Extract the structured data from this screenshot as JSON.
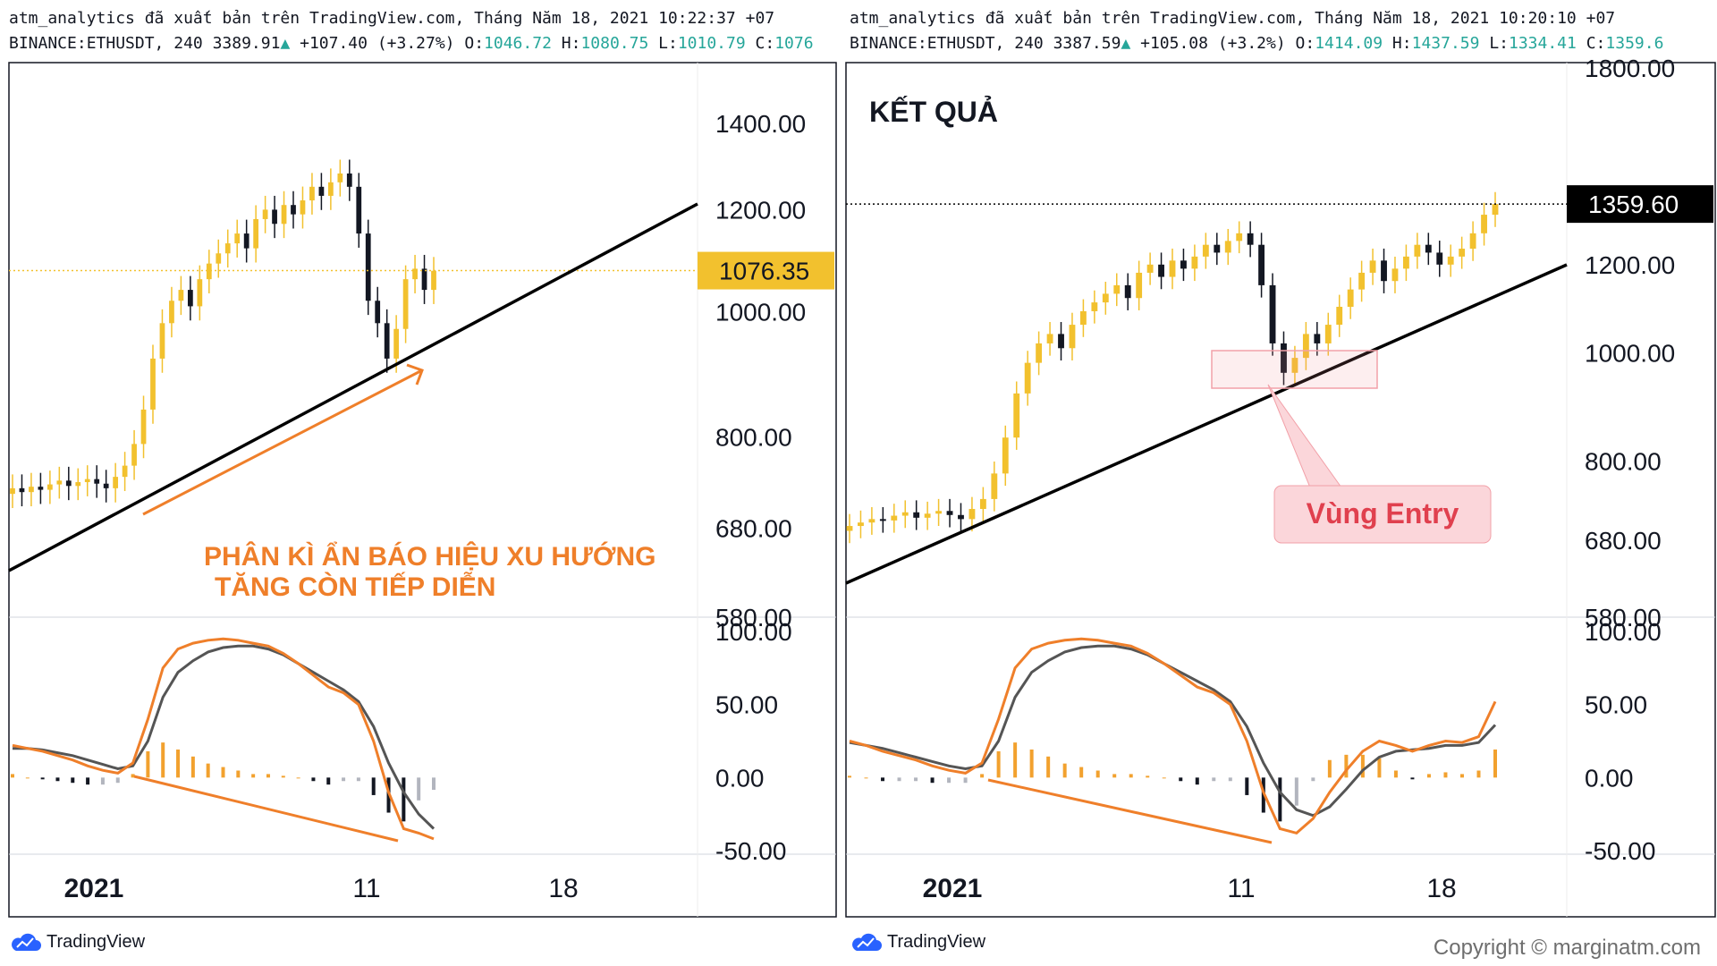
{
  "brand": {
    "logo_text": "TradingView",
    "copyright": "Copyright © marginatm.com",
    "candle_up": "#f2c12e",
    "candle_down": "#131722",
    "accent_orange": "#ef7f2a",
    "trend": "#000000",
    "macd": "#ef7f2a",
    "signal": "#555555"
  },
  "panels": [
    {
      "header_line1": "atm_analytics đã xuất bản trên TradingView.com, Tháng Năm 18, 2021 10:22:37 +07",
      "header_line2": {
        "symbol": "BINANCE:ETHUSDT, 240 3389.91",
        "arrow": "▲",
        "change": "+107.40 (+3.27%)",
        "o_label": "O:",
        "o": "1046.72",
        "h_label": "H:",
        "h": "1080.75",
        "l_label": "L:",
        "l": "1010.79",
        "c_label": "C:",
        "c": "1076"
      },
      "price_tag": "1076.35",
      "annotation_line1": "PHÂN KÌ ẨN BÁO HIỆU XU HƯỚNG",
      "annotation_line2": "TĂNG CÒN TIẾP DIỄN",
      "title": ""
    },
    {
      "header_line1": "atm_analytics đã xuất bản trên TradingView.com, Tháng Năm 18, 2021 10:20:10 +07",
      "header_line2": {
        "symbol": "BINANCE:ETHUSDT, 240 3387.59",
        "arrow": "▲",
        "change": "+105.08 (+3.2%)",
        "o_label": "O:",
        "o": "1414.09",
        "h_label": "H:",
        "h": "1437.59",
        "l_label": "L:",
        "l": "1334.41",
        "c_label": "C:",
        "c": "1359.6"
      },
      "price_tag": "1359.60",
      "title": "KẾT QUẢ",
      "entry_label": "Vùng Entry"
    }
  ],
  "chart_data": [
    {
      "type": "candlestick",
      "panel": "left",
      "y_ticks": [
        "1400.00",
        "1200.00",
        "1000.00",
        "800.00",
        "680.00",
        "580.00"
      ],
      "y_tick_values": [
        1400,
        1200,
        1000,
        800,
        680,
        580
      ],
      "y_scale": "log",
      "ylim": [
        580,
        1560
      ],
      "x_ticks": [
        "2021",
        "11",
        "18"
      ],
      "last_price": 1076.35,
      "close_path": [
        730,
        725,
        732,
        728,
        735,
        740,
        733,
        738,
        742,
        736,
        730,
        745,
        760,
        790,
        840,
        920,
        980,
        1020,
        1040,
        1010,
        1060,
        1090,
        1110,
        1130,
        1150,
        1120,
        1180,
        1200,
        1170,
        1210,
        1190,
        1220,
        1250,
        1230,
        1260,
        1280,
        1250,
        1150,
        1020,
        980,
        920,
        970,
        1060,
        1080,
        1040,
        1076
      ],
      "macd_indicator": {
        "y_ticks": [
          "100.00",
          "50.00",
          "0.00",
          "-50.00"
        ],
        "y_tick_values": [
          100,
          50,
          0,
          -50
        ],
        "macd": [
          22,
          20,
          18,
          15,
          12,
          8,
          5,
          3,
          10,
          40,
          75,
          88,
          92,
          94,
          95,
          94,
          92,
          90,
          85,
          78,
          70,
          62,
          58,
          50,
          25,
          -10,
          -35,
          -38,
          -42
        ],
        "signal": [
          20,
          20,
          19,
          17,
          15,
          12,
          9,
          6,
          8,
          25,
          55,
          72,
          80,
          86,
          89,
          90,
          90,
          88,
          84,
          78,
          72,
          66,
          60,
          52,
          35,
          10,
          -10,
          -25,
          -35
        ]
      }
    },
    {
      "type": "candlestick",
      "panel": "right",
      "y_ticks": [
        "1800.00",
        "1200.00",
        "1000.00",
        "800.00",
        "680.00",
        "580.00"
      ],
      "y_tick_values": [
        1800,
        1200,
        1000,
        800,
        680,
        580
      ],
      "y_scale": "log",
      "ylim": [
        580,
        1820
      ],
      "x_ticks": [
        "2021",
        "11",
        "18"
      ],
      "last_price": 1359.6,
      "close_path": [
        700,
        705,
        710,
        708,
        715,
        720,
        712,
        718,
        722,
        716,
        710,
        725,
        740,
        780,
        840,
        920,
        980,
        1020,
        1040,
        1010,
        1060,
        1090,
        1110,
        1130,
        1150,
        1120,
        1180,
        1200,
        1170,
        1210,
        1190,
        1220,
        1250,
        1230,
        1260,
        1280,
        1250,
        1150,
        1020,
        960,
        990,
        1040,
        1020,
        1060,
        1100,
        1140,
        1180,
        1210,
        1160,
        1190,
        1220,
        1250,
        1230,
        1200,
        1220,
        1240,
        1280,
        1330,
        1359.6
      ],
      "macd_indicator": {
        "y_ticks": [
          "100.00",
          "50.00",
          "0.00",
          "-50.00"
        ],
        "y_tick_values": [
          100,
          50,
          0,
          -50
        ],
        "macd": [
          25,
          22,
          18,
          15,
          12,
          8,
          5,
          3,
          10,
          40,
          75,
          88,
          92,
          94,
          95,
          94,
          92,
          90,
          85,
          78,
          70,
          62,
          58,
          50,
          25,
          -10,
          -35,
          -38,
          -28,
          -10,
          5,
          18,
          25,
          22,
          18,
          22,
          25,
          24,
          28,
          52
        ],
        "signal": [
          24,
          22,
          20,
          17,
          14,
          11,
          8,
          6,
          8,
          25,
          55,
          72,
          80,
          86,
          89,
          90,
          90,
          88,
          84,
          78,
          72,
          66,
          60,
          52,
          35,
          10,
          -10,
          -22,
          -26,
          -20,
          -8,
          5,
          14,
          18,
          19,
          20,
          22,
          22,
          24,
          36
        ]
      }
    }
  ]
}
